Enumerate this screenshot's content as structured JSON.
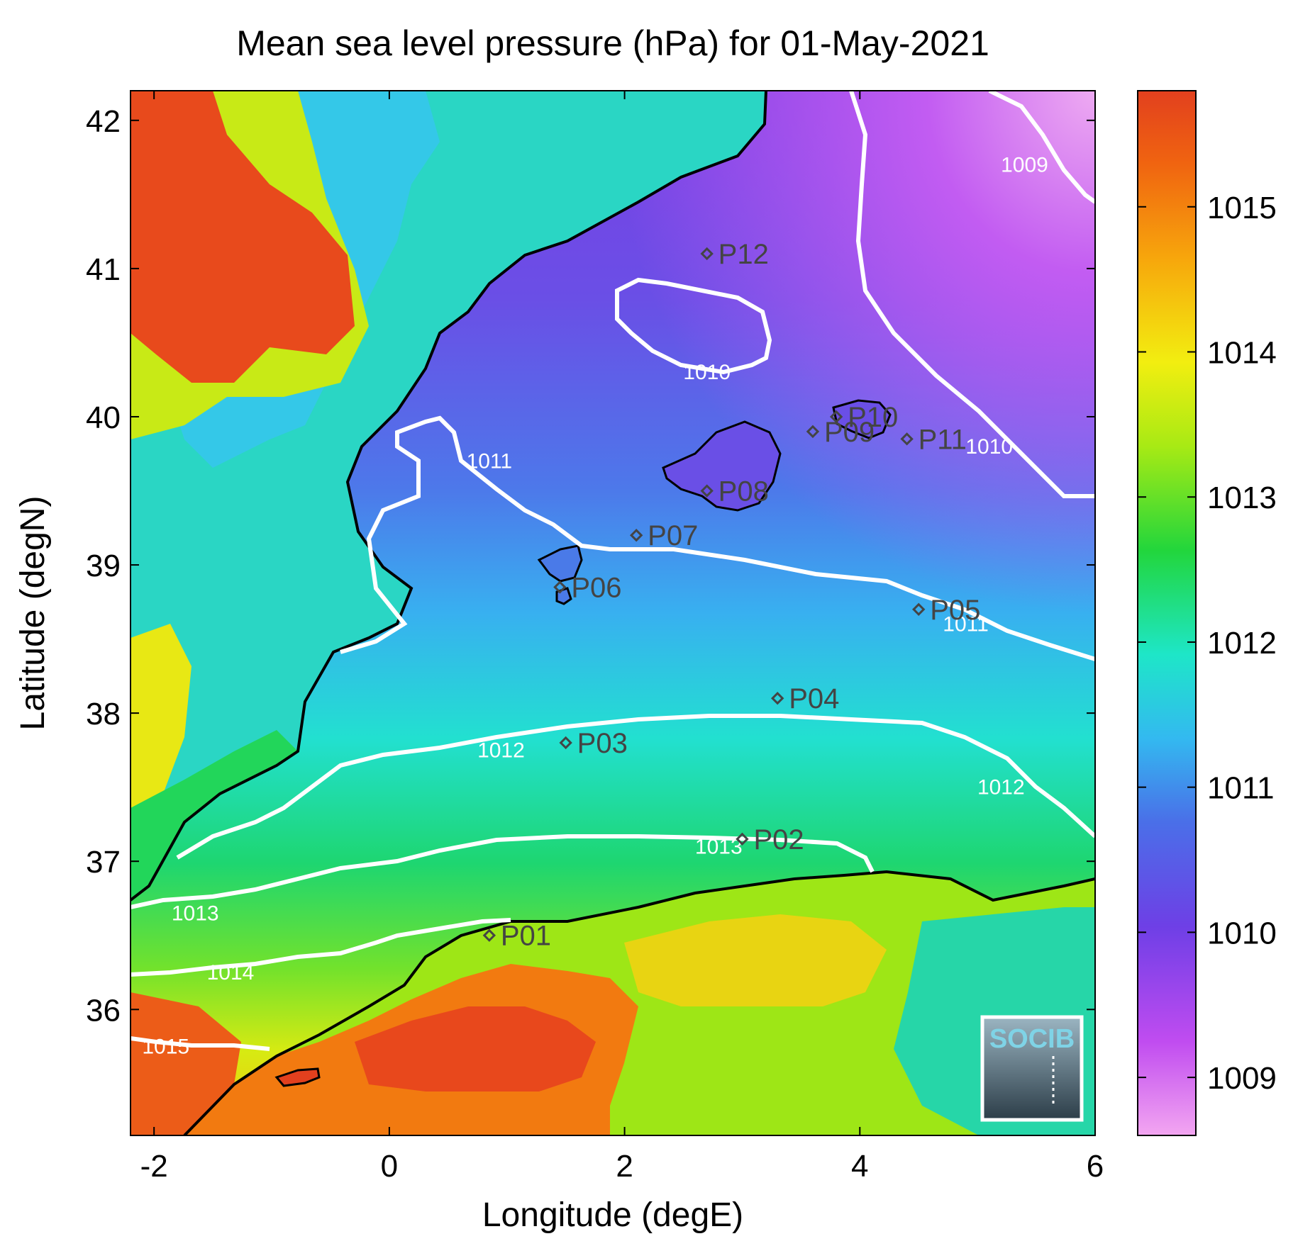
{
  "title": "Mean sea level pressure (hPa) for 01-May-2021",
  "x_axis": {
    "label": "Longitude (degE)",
    "range": [
      -2.2,
      6.0
    ],
    "ticks": [
      -2,
      0,
      2,
      4,
      6
    ],
    "tick_labels": [
      "-2",
      "0",
      "2",
      "4",
      "6"
    ]
  },
  "y_axis": {
    "label": "Latitude (degN)",
    "range": [
      35.15,
      42.2
    ],
    "ticks": [
      36,
      37,
      38,
      39,
      40,
      41,
      42
    ],
    "tick_labels": [
      "36",
      "37",
      "38",
      "39",
      "40",
      "41",
      "42"
    ]
  },
  "colorbar": {
    "range": [
      1008.6,
      1015.8
    ],
    "ticks": [
      1009,
      1010,
      1011,
      1012,
      1013,
      1014,
      1015
    ],
    "tick_labels": [
      "1009",
      "1010",
      "1011",
      "1012",
      "1013",
      "1014",
      "1015"
    ],
    "colormap": [
      "#f3a6f1",
      "#c04cf0",
      "#6e3fe6",
      "#4a6fe8",
      "#33b9f0",
      "#1ee6c8",
      "#22d63c",
      "#a8ea14",
      "#f2ee10",
      "#f7a60c",
      "#f06410",
      "#e2401e"
    ]
  },
  "points": [
    {
      "name": "P01",
      "lon": 0.85,
      "lat": 36.5
    },
    {
      "name": "P02",
      "lon": 3.0,
      "lat": 37.15
    },
    {
      "name": "P03",
      "lon": 1.5,
      "lat": 37.8
    },
    {
      "name": "P04",
      "lon": 3.3,
      "lat": 38.1
    },
    {
      "name": "P05",
      "lon": 4.5,
      "lat": 38.7
    },
    {
      "name": "P06",
      "lon": 1.45,
      "lat": 38.85
    },
    {
      "name": "P07",
      "lon": 2.1,
      "lat": 39.2
    },
    {
      "name": "P08",
      "lon": 2.7,
      "lat": 39.5
    },
    {
      "name": "P09",
      "lon": 3.6,
      "lat": 39.9
    },
    {
      "name": "P10",
      "lon": 3.8,
      "lat": 40.0
    },
    {
      "name": "P11",
      "lon": 4.4,
      "lat": 39.85
    },
    {
      "name": "P12",
      "lon": 2.7,
      "lat": 41.1
    }
  ],
  "contours": [
    {
      "label": "1009",
      "lon": 5.4,
      "lat": 41.7
    },
    {
      "label": "1010",
      "lon": 2.7,
      "lat": 40.3
    },
    {
      "label": "1010",
      "lon": 5.1,
      "lat": 39.8
    },
    {
      "label": "1011",
      "lon": 0.85,
      "lat": 39.7
    },
    {
      "label": "1011",
      "lon": 4.9,
      "lat": 38.6
    },
    {
      "label": "1012",
      "lon": 0.95,
      "lat": 37.75
    },
    {
      "label": "1012",
      "lon": 5.2,
      "lat": 37.5
    },
    {
      "label": "1013",
      "lon": 2.8,
      "lat": 37.1
    },
    {
      "label": "1013",
      "lon": -1.65,
      "lat": 36.65
    },
    {
      "label": "1014",
      "lon": -1.35,
      "lat": 36.25
    },
    {
      "label": "1015",
      "lon": -1.9,
      "lat": 35.75
    }
  ],
  "logo": {
    "text": "SOCIB"
  },
  "colors": {
    "contour": "#ffffff",
    "coastline": "#000000",
    "marker": "#444444"
  }
}
